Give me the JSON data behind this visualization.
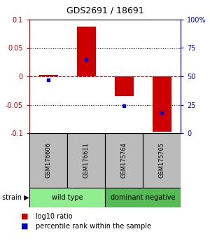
{
  "title": "GDS2691 / 18691",
  "samples": [
    "GSM176606",
    "GSM176611",
    "GSM175764",
    "GSM175765"
  ],
  "log10_ratio": [
    0.002,
    0.088,
    -0.035,
    -0.098
  ],
  "percentile_rank": [
    47,
    65,
    24,
    18
  ],
  "groups": [
    {
      "label": "wild type",
      "samples": [
        0,
        1
      ],
      "color": "#90EE90"
    },
    {
      "label": "dominant negative",
      "samples": [
        2,
        3
      ],
      "color": "#55BB55"
    }
  ],
  "ylim": [
    -0.1,
    0.1
  ],
  "yticks_left": [
    -0.1,
    -0.05,
    0,
    0.05,
    0.1
  ],
  "yticks_right": [
    0,
    25,
    50,
    75,
    100
  ],
  "bar_width": 0.5,
  "red_color": "#CC0000",
  "blue_color": "#0000CC",
  "sample_box_color": "#BBBBBB",
  "plot_bg": "#FFFFFF"
}
